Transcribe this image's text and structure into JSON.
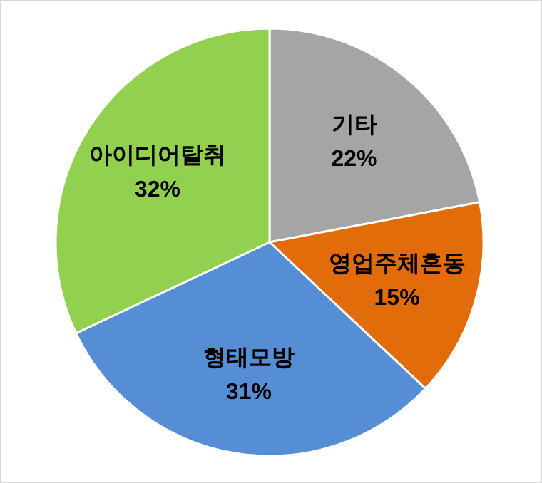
{
  "chart_data": {
    "type": "pie",
    "categories": [
      "기타",
      "영업주체혼동",
      "형태모방",
      "아이디어탈취"
    ],
    "values": [
      22,
      15,
      31,
      32
    ],
    "colors": [
      "#a5a5a5",
      "#e36c0a",
      "#558ed5",
      "#92d050"
    ],
    "value_labels": [
      "22%",
      "15%",
      "31%",
      "32%"
    ]
  }
}
